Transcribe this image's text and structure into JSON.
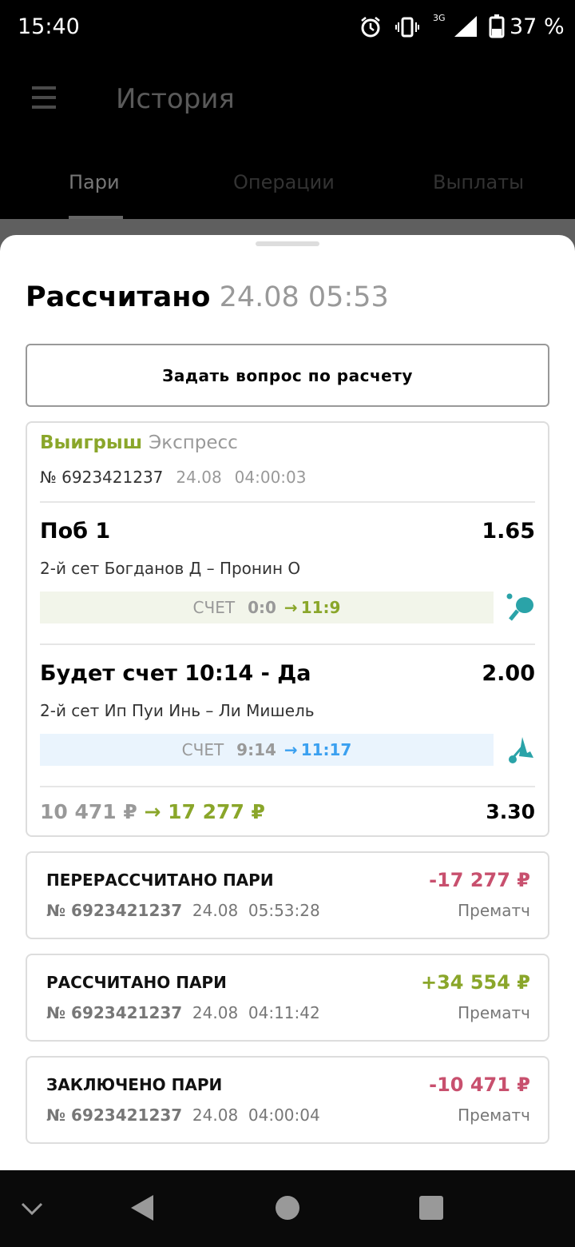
{
  "status_bar": {
    "time": "15:40",
    "battery": "37 %",
    "network": "3G"
  },
  "app_bar": {
    "title": "История",
    "menu_icon": "hamburger-icon"
  },
  "tabs": [
    {
      "label": "Пари",
      "active": true
    },
    {
      "label": "Операции",
      "active": false
    },
    {
      "label": "Выплаты",
      "active": false
    }
  ],
  "sheet": {
    "title": "Рассчитано",
    "title_date": "24.08 05:53",
    "ask_button": "Задать вопрос по расчету",
    "bet": {
      "result": "Выигрыш",
      "type": "Экспресс",
      "number": "№ 6923421237",
      "date": "24.08",
      "time": "04:00:03",
      "selections": [
        {
          "name": "Поб 1",
          "odds": "1.65",
          "event": "2-й сет Богданов Д – Пронин О",
          "score_label": "СЧЕТ",
          "score_from": "0:0",
          "score_to": "11:9",
          "sport_icon": "table-tennis-icon"
        },
        {
          "name": "Будет счет 10:14 - Да",
          "odds": "2.00",
          "event": "2-й сет Ип Пуи Инь – Ли Мишель",
          "score_label": "СЧЕТ",
          "score_from": "9:14",
          "score_to": "11:17",
          "sport_icon": "badminton-icon"
        }
      ],
      "stake": "10 471 ₽",
      "payout": "17 277 ₽",
      "total_odds": "3.30"
    },
    "operations": [
      {
        "title": "ПЕРЕРАССЧИТАНО ПАРИ",
        "amount": "-17 277 ₽",
        "number": "№ 6923421237",
        "date": "24.08",
        "time": "05:53:28",
        "kind": "Прематч",
        "sign": "negative"
      },
      {
        "title": "РАССЧИТАНО ПАРИ",
        "amount": "+34 554 ₽",
        "number": "№ 6923421237",
        "date": "24.08",
        "time": "04:11:42",
        "kind": "Прематч",
        "sign": "positive"
      },
      {
        "title": "ЗАКЛЮЧЕНО ПАРИ",
        "amount": "-10 471 ₽",
        "number": "№ 6923421237",
        "date": "24.08",
        "time": "04:00:04",
        "kind": "Прематч",
        "sign": "negative"
      }
    ]
  },
  "colors": {
    "win": "#8aa62a",
    "loss": "#c8506e",
    "blue_score": "#3aa0f0",
    "sport_icon": "#2aa3a8"
  }
}
